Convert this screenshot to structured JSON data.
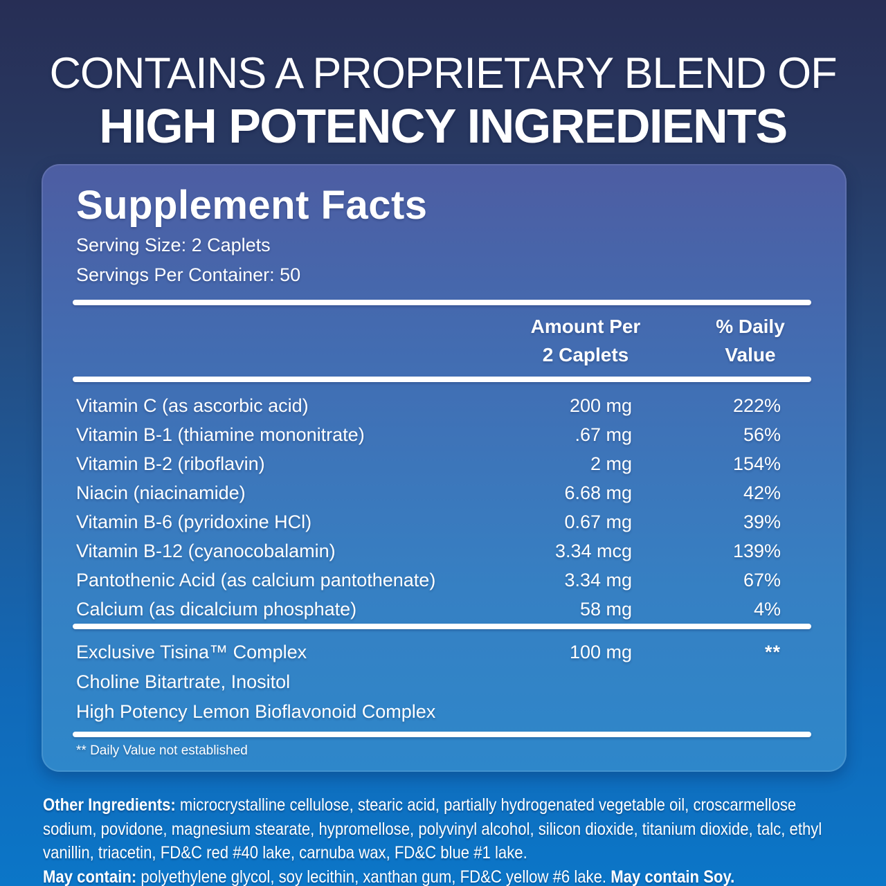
{
  "header": {
    "line1": "CONTAINS A PROPRIETARY BLEND OF",
    "line2": "HIGH POTENCY INGREDIENTS"
  },
  "panel": {
    "title": "Supplement Facts",
    "serving_size": "Serving Size: 2 Caplets",
    "servings_per_container": "Servings Per Container: 50",
    "columns": {
      "amount_line1": "Amount Per",
      "amount_line2": "2 Caplets",
      "dv_line1": "% Daily",
      "dv_line2": "Value"
    },
    "rows": [
      {
        "name": "Vitamin C (as ascorbic acid)",
        "amount": "200 mg",
        "dv": "222%"
      },
      {
        "name": "Vitamin B-1 (thiamine mononitrate)",
        "amount": ".67 mg",
        "dv": "56%"
      },
      {
        "name": "Vitamin B-2 (riboflavin)",
        "amount": "2 mg",
        "dv": "154%"
      },
      {
        "name": "Niacin (niacinamide)",
        "amount": "6.68 mg",
        "dv": "42%"
      },
      {
        "name": "Vitamin B-6 (pyridoxine HCl)",
        "amount": "0.67 mg",
        "dv": "39%"
      },
      {
        "name": "Vitamin B-12 (cyanocobalamin)",
        "amount": "3.34 mcg",
        "dv": "139%"
      },
      {
        "name": "Pantothenic Acid (as calcium pantothenate)",
        "amount": "3.34 mg",
        "dv": "67%"
      },
      {
        "name": "Calcium (as dicalcium phosphate)",
        "amount": "58 mg",
        "dv": "4%"
      }
    ],
    "proprietary": {
      "name": "Exclusive Tisina™ Complex",
      "amount": "100 mg",
      "dv": "**",
      "line2": "Choline Bitartrate, Inositol",
      "line3": "High Potency Lemon Bioflavonoid Complex"
    },
    "footnote": "** Daily Value not established"
  },
  "bottom": {
    "other_ingredients_label": "Other Ingredients:",
    "other_ingredients_text": " microcrystalline cellulose, stearic acid, partially hydrogenated vegetable oil, croscarmellose sodium, povidone, magnesium stearate, hypromellose, polyvinyl alcohol, silicon dioxide, titanium dioxide, talc, ethyl vanillin, triacetin, FD&C red #40 lake, carnuba wax, FD&C blue #1 lake.",
    "may_contain_label": "May contain:",
    "may_contain_text": " polyethylene glycol, soy lecithin, xanthan gum, FD&C yellow #6 lake. ",
    "may_contain_bold": "May contain Soy."
  },
  "colors": {
    "background_top": "#272e55",
    "background_bottom": "#0b76c8",
    "panel_top": "#4d5da2",
    "panel_bottom": "#2e87ca",
    "text": "#ffffff"
  }
}
